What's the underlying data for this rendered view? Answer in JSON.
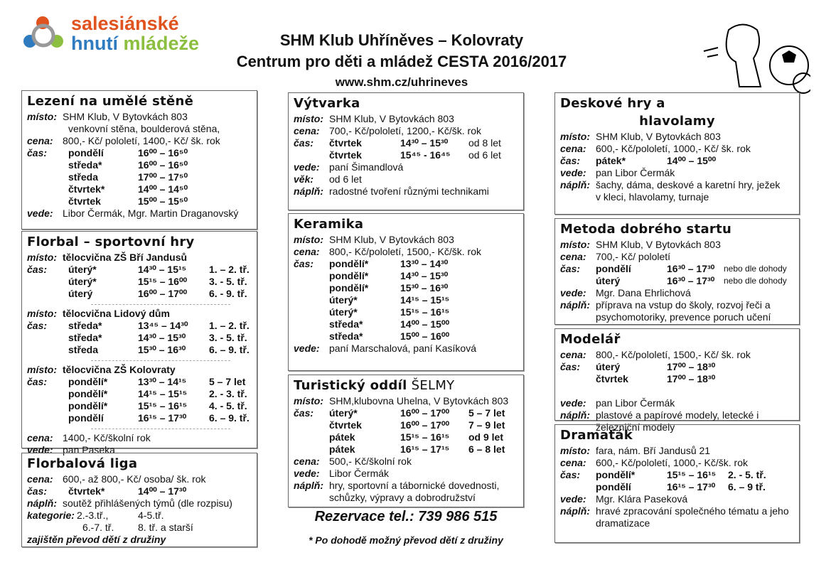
{
  "header": {
    "logo_line1": "salesiánské",
    "logo_line2a": "hnutí ",
    "logo_line2b": "mládeže",
    "title1": "SHM Klub Uhříněves – Kolovraty",
    "title2": "Centrum pro děti a mládež CESTA 2016/2017",
    "url": "www.shm.cz/uhrineves"
  },
  "footer": {
    "reservation": "Rezervace tel.: 739 986 515",
    "note": "* Po dohodě možný převod dětí z družiny"
  },
  "boxes": [
    {
      "title": "Lezení na umělé stěně",
      "rows": [
        {
          "l": "místo:",
          "t": "SHM Klub, V Bytovkách 803"
        },
        {
          "t2": "venkovní stěna, boulderová stěna,"
        },
        {
          "l": "cena:",
          "t": "800,- Kč/ pololetí, 1400,- Kč/ šk. rok"
        },
        {
          "l": "čas:",
          "d": "pondělí",
          "tm": "16⁰⁰ – 16⁵⁰"
        },
        {
          "d": "středa*",
          "tm": "16⁰⁰ – 16⁵⁰"
        },
        {
          "d": "středa",
          "tm": "17⁰⁰ – 17⁵⁰"
        },
        {
          "d": "čtvrtek*",
          "tm": "14⁰⁰ – 14⁵⁰"
        },
        {
          "d": "čtvrtek",
          "tm": "15⁰⁰ – 15⁵⁰"
        },
        {
          "l": "vede:",
          "t": "Libor Čermák, Mgr. Martin Draganovský"
        }
      ]
    },
    {
      "title": "Florbal – sportovní hry",
      "rows": [
        {
          "l": "místo:",
          "tb": "tělocvična ZŠ Bří Jandusů"
        },
        {
          "l": "čas:",
          "d": "úterý*",
          "tm": "14³⁰ – 15¹⁵",
          "e": "1. – 2. tř."
        },
        {
          "d": "úterý*",
          "tm": "15¹⁵ – 16⁰⁰",
          "e": "3. - 5. tř."
        },
        {
          "d": "úterý",
          "tm": "16⁰⁰ – 17⁰⁰",
          "e": "6. - 9. tř."
        },
        {
          "hr": true
        },
        {
          "l": "místo:",
          "tb": "tělocvična Lidový dům"
        },
        {
          "l": "čas:",
          "d": "středa*",
          "tm": "13⁴⁵ – 14³⁰",
          "e": "1. – 2. tř."
        },
        {
          "d": "středa*",
          "tm": "14³⁰ – 15³⁰",
          "e": "3. - 5. tř."
        },
        {
          "d": "středa",
          "tm": "15³⁰ – 16³⁰",
          "e": "6. – 9. tř."
        },
        {
          "hr": true
        },
        {
          "l": "místo:",
          "tb": "tělocvična ZŠ Kolovraty"
        },
        {
          "l": "čas:",
          "d": "pondělí*",
          "tm": "13³⁰ – 14¹⁵",
          "e": "5 – 7 let"
        },
        {
          "d": "pondělí*",
          "tm": "14¹⁵ – 15¹⁵",
          "e": "2. - 3. tř."
        },
        {
          "d": "pondělí*",
          "tm": "15¹⁵ – 16¹⁵",
          "e": "4. - 5. tř."
        },
        {
          "d": "pondělí",
          "tm": "16¹⁵ – 17³⁰",
          "e": "6. – 9. tř."
        },
        {
          "hr": true
        },
        {
          "l": "cena:",
          "t": "1400,- Kč/školní rok"
        },
        {
          "l": "vede:",
          "t": "pan Paseka"
        }
      ]
    },
    {
      "title": "Florbalová liga",
      "rows": [
        {
          "l": "cena:",
          "t": "600,- až 800,- Kč/ osoba/ šk. rok"
        },
        {
          "l": "čas:",
          "d": "čtvrtek*",
          "tm": "14⁰⁰ – 17³⁰"
        },
        {
          "l": "náplň:",
          "t": "soutěž přihlášených týmů (dle rozpisu)"
        },
        {
          "l": "kategorie:",
          "t": "2.-3.tř.,",
          "e2": "4-5.tř."
        },
        {
          "t": "6.-7. tř.",
          "e2": "8. tř. a starší"
        },
        {
          "bi": "zajištěn převod dětí z družiny"
        }
      ]
    },
    {
      "title": "Výtvarka",
      "rows": [
        {
          "l": "místo:",
          "t": "SHM Klub, V Bytovkách 803"
        },
        {
          "l": "cena:",
          "t": "700,- Kč/pololetí, 1200,- Kč/šk. rok"
        },
        {
          "l": "čas:",
          "d": "čtvrtek",
          "tm": "14³⁰ – 15³⁰",
          "en": "od 8 let"
        },
        {
          "d": "čtvrtek",
          "tm": "15⁴⁵ - 16⁴⁵",
          "en": "od 6 let"
        },
        {
          "l": "vede:",
          "t": "paní Šimandlová"
        },
        {
          "l": "věk:",
          "t": "od 6 let"
        },
        {
          "l": "náplň:",
          "t": "radostné tvoření různými technikami"
        }
      ]
    },
    {
      "title": "Keramika",
      "rows": [
        {
          "l": "místo:",
          "t": "SHM Klub, V Bytovkách 803"
        },
        {
          "l": "cena:",
          "t": "800,- Kč/pololetí, 1500,- Kč/šk. rok"
        },
        {
          "l": "čas:",
          "d": "pondělí*",
          "tm": "13³⁰ – 14³⁰"
        },
        {
          "d": "pondělí*",
          "tm": "14³⁰ – 15³⁰"
        },
        {
          "d": "pondělí*",
          "tm": "15³⁰ – 16³⁰"
        },
        {
          "d": "úterý*",
          "tm": "14¹⁵ – 15¹⁵"
        },
        {
          "d": "úterý*",
          "tm": "15¹⁵ – 16¹⁵"
        },
        {
          "d": "středa*",
          "tm": "14⁰⁰ – 15⁰⁰"
        },
        {
          "d": "středa*",
          "tm": "15⁰⁰ – 16⁰⁰"
        },
        {
          "l": "vede:",
          "t": "paní Marschalová, paní Kasíková"
        }
      ]
    },
    {
      "title": "Turistický oddíl",
      "title_extra": " ŠELMY",
      "rows": [
        {
          "l": "místo:",
          "t": "SHM,klubovna Uhelna, V Bytovkách 803"
        },
        {
          "l": "čas:",
          "d": "úterý*",
          "tm": "16⁰⁰ – 17⁰⁰",
          "e": "5 – 7 let"
        },
        {
          "d": "čtvrtek",
          "tm": "16⁰⁰ – 17⁰⁰",
          "e": "7 – 9 let"
        },
        {
          "d": "pátek",
          "tm": "15¹⁵ – 16¹⁵",
          "e": "od 9 let"
        },
        {
          "d": "pátek",
          "tm": "16¹⁵ – 17¹⁵",
          "e": "6 – 8 let"
        },
        {
          "l": "cena:",
          "t": "500,- Kč/školní rok"
        },
        {
          "l": "vede:",
          "t": "Libor Čermák"
        },
        {
          "l": "náplň:",
          "t": "hry, sportovní a tábornické dovednosti,"
        },
        {
          "t": "schůzky, výpravy a dobrodružství"
        }
      ]
    },
    {
      "title": "Deskové hry a",
      "title2": "hlavolamy",
      "rows": [
        {
          "l": "místo:",
          "t": "SHM Klub, V Bytovkách 803"
        },
        {
          "l": "cena:",
          "t": "600,- Kč/pololetí, 1000,- Kč/ šk. rok"
        },
        {
          "l": "čas:",
          "d": "pátek*",
          "tm": "14⁰⁰ – 15⁰⁰"
        },
        {
          "l": "vede:",
          "t": "pan Libor Čermák"
        },
        {
          "l": "náplň:",
          "t": "šachy, dáma, deskové a karetní hry, ježek"
        },
        {
          "t": "v kleci, hlavolamy, turnaje"
        }
      ]
    },
    {
      "title": "Metoda dobrého startu",
      "rows": [
        {
          "l": "místo:",
          "t": "SHM Klub, V Bytovkách 803"
        },
        {
          "l": "cena:",
          "t": "700,- Kč/ pololetí"
        },
        {
          "l": "čas:",
          "d": "pondělí",
          "tm": "16³⁰ – 17³⁰",
          "es": "nebo dle dohody"
        },
        {
          "d": "úterý",
          "tm": "16³⁰ – 17³⁰",
          "es": "nebo dle dohody"
        },
        {
          "l": "vede:",
          "t": "Mgr. Dana Ehrlichová"
        },
        {
          "l": "náplň:",
          "t": "příprava na vstup do školy, rozvoj řeči a"
        },
        {
          "t": "psychomotoriky, prevence poruch učení"
        }
      ]
    },
    {
      "title": "Modelář",
      "rows": [
        {
          "l": "cena:",
          "t": "800,- Kč/pololetí, 1500,- Kč/ šk. rok"
        },
        {
          "l": "čas:",
          "d": "úterý",
          "tm": "17⁰⁰ – 18³⁰"
        },
        {
          "d": "čtvrtek",
          "tm": "17⁰⁰ – 18³⁰"
        },
        {
          "sp": true
        },
        {
          "l": "vede:",
          "t": "pan Libor Čermák"
        },
        {
          "l": "náplň:",
          "t": "plastové a papírové modely, letecké i"
        },
        {
          "t": "železniční modely"
        }
      ]
    },
    {
      "title": "Dramaťák",
      "rows": [
        {
          "l": "místo:",
          "t": "fara, nám. Bří Jandusů 21"
        },
        {
          "l": "cena:",
          "t": "600,- Kč/pololetí, 1000,- Kč/šk. rok"
        },
        {
          "l": "čas:",
          "d": "pondělí*",
          "tm": "15¹⁵ – 16¹⁵",
          "e": "2. - 5. tř."
        },
        {
          "d": "pondělí",
          "tm": "16¹⁵ – 17³⁰",
          "e": "6. – 9 tř."
        },
        {
          "l": "vede:",
          "t": "Mgr. Klára Paseková"
        },
        {
          "l": "náplň:",
          "t": "hravé zpracování společného tématu a jeho"
        },
        {
          "t": "dramatizace"
        }
      ]
    }
  ]
}
